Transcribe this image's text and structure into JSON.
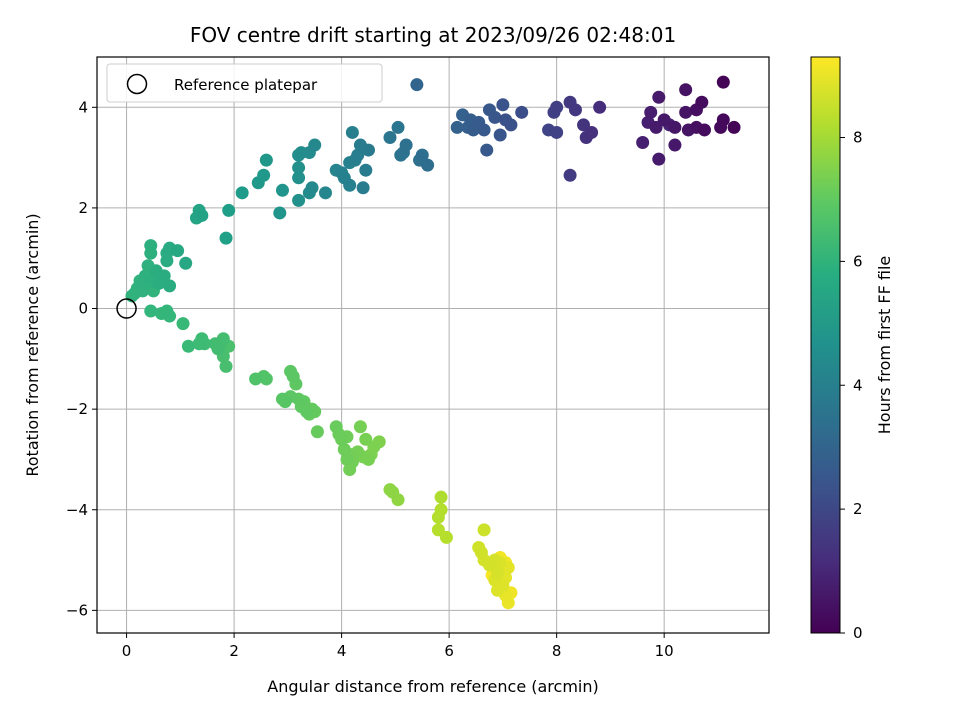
{
  "chart_data": {
    "type": "scatter",
    "title": "FOV centre drift starting at 2023/09/26 02:48:01",
    "xlabel": "Angular distance from reference (arcmin)",
    "ylabel": "Rotation from reference (arcmin)",
    "xlim": [
      -0.55,
      11.95
    ],
    "ylim": [
      -6.45,
      5.0
    ],
    "xticks": [
      0,
      2,
      4,
      6,
      8,
      10
    ],
    "yticks": [
      -6,
      -4,
      -2,
      0,
      2,
      4
    ],
    "grid": true,
    "legend": {
      "placement": "top-left",
      "entries": [
        "Reference platepar"
      ]
    },
    "reference_point": {
      "x": 0,
      "y": 0
    },
    "colorbar": {
      "label": "Hours from first FF file",
      "range": [
        0,
        9.3
      ],
      "ticks": [
        0,
        2,
        4,
        6,
        8
      ],
      "colormap": "viridis"
    },
    "points": [
      {
        "x": 11.1,
        "y": 4.5,
        "c": 0.1
      },
      {
        "x": 11.3,
        "y": 3.6,
        "c": 0.1
      },
      {
        "x": 11.1,
        "y": 3.75,
        "c": 0.2
      },
      {
        "x": 11.05,
        "y": 3.6,
        "c": 0.2
      },
      {
        "x": 10.75,
        "y": 3.55,
        "c": 0.3
      },
      {
        "x": 10.7,
        "y": 4.1,
        "c": 0.3
      },
      {
        "x": 10.6,
        "y": 3.95,
        "c": 0.35
      },
      {
        "x": 10.6,
        "y": 3.6,
        "c": 0.4
      },
      {
        "x": 10.4,
        "y": 4.35,
        "c": 0.45
      },
      {
        "x": 10.45,
        "y": 3.55,
        "c": 0.5
      },
      {
        "x": 10.4,
        "y": 3.9,
        "c": 0.5
      },
      {
        "x": 10.2,
        "y": 3.6,
        "c": 0.55
      },
      {
        "x": 10.2,
        "y": 3.25,
        "c": 0.6
      },
      {
        "x": 10.0,
        "y": 3.75,
        "c": 0.6
      },
      {
        "x": 9.9,
        "y": 4.2,
        "c": 0.65
      },
      {
        "x": 9.9,
        "y": 2.97,
        "c": 0.7
      },
      {
        "x": 9.85,
        "y": 3.6,
        "c": 0.7
      },
      {
        "x": 9.75,
        "y": 3.9,
        "c": 0.75
      },
      {
        "x": 9.7,
        "y": 3.7,
        "c": 0.8
      },
      {
        "x": 9.6,
        "y": 3.3,
        "c": 0.8
      },
      {
        "x": 10.1,
        "y": 3.65,
        "c": 0.85
      },
      {
        "x": 8.8,
        "y": 4.0,
        "c": 1.2
      },
      {
        "x": 8.65,
        "y": 3.5,
        "c": 1.3
      },
      {
        "x": 8.55,
        "y": 3.4,
        "c": 1.35
      },
      {
        "x": 8.5,
        "y": 3.65,
        "c": 1.4
      },
      {
        "x": 8.35,
        "y": 3.95,
        "c": 1.5
      },
      {
        "x": 8.25,
        "y": 4.1,
        "c": 1.55
      },
      {
        "x": 8.25,
        "y": 2.65,
        "c": 1.6
      },
      {
        "x": 8.0,
        "y": 4.0,
        "c": 1.7
      },
      {
        "x": 7.95,
        "y": 3.9,
        "c": 1.75
      },
      {
        "x": 8.0,
        "y": 3.5,
        "c": 1.8
      },
      {
        "x": 7.85,
        "y": 3.55,
        "c": 1.85
      },
      {
        "x": 7.35,
        "y": 3.9,
        "c": 2.2
      },
      {
        "x": 7.15,
        "y": 3.65,
        "c": 2.3
      },
      {
        "x": 7.05,
        "y": 3.75,
        "c": 2.35
      },
      {
        "x": 7.0,
        "y": 4.05,
        "c": 2.4
      },
      {
        "x": 6.95,
        "y": 3.45,
        "c": 2.45
      },
      {
        "x": 6.85,
        "y": 3.8,
        "c": 2.5
      },
      {
        "x": 6.75,
        "y": 3.95,
        "c": 2.55
      },
      {
        "x": 6.7,
        "y": 3.15,
        "c": 2.6
      },
      {
        "x": 6.65,
        "y": 3.55,
        "c": 2.6
      },
      {
        "x": 6.55,
        "y": 3.7,
        "c": 2.65
      },
      {
        "x": 6.45,
        "y": 3.55,
        "c": 2.7
      },
      {
        "x": 6.4,
        "y": 3.75,
        "c": 2.75
      },
      {
        "x": 6.35,
        "y": 3.6,
        "c": 2.8
      },
      {
        "x": 6.25,
        "y": 3.85,
        "c": 2.85
      },
      {
        "x": 6.15,
        "y": 3.6,
        "c": 2.9
      },
      {
        "x": 5.4,
        "y": 4.45,
        "c": 3.0
      },
      {
        "x": 5.6,
        "y": 2.85,
        "c": 3.3
      },
      {
        "x": 5.5,
        "y": 3.05,
        "c": 3.35
      },
      {
        "x": 5.45,
        "y": 2.95,
        "c": 3.4
      },
      {
        "x": 5.2,
        "y": 3.25,
        "c": 3.45
      },
      {
        "x": 5.15,
        "y": 3.1,
        "c": 3.5
      },
      {
        "x": 5.1,
        "y": 3.05,
        "c": 3.55
      },
      {
        "x": 5.05,
        "y": 3.6,
        "c": 3.6
      },
      {
        "x": 4.9,
        "y": 3.4,
        "c": 3.65
      },
      {
        "x": 4.5,
        "y": 3.15,
        "c": 3.8
      },
      {
        "x": 4.45,
        "y": 2.75,
        "c": 3.85
      },
      {
        "x": 4.4,
        "y": 2.4,
        "c": 3.9
      },
      {
        "x": 4.35,
        "y": 3.25,
        "c": 3.9
      },
      {
        "x": 4.3,
        "y": 3.05,
        "c": 3.95
      },
      {
        "x": 4.25,
        "y": 2.95,
        "c": 4.0
      },
      {
        "x": 4.2,
        "y": 3.5,
        "c": 4.0
      },
      {
        "x": 4.15,
        "y": 2.9,
        "c": 4.05
      },
      {
        "x": 4.15,
        "y": 2.45,
        "c": 4.05
      },
      {
        "x": 4.05,
        "y": 2.6,
        "c": 4.1
      },
      {
        "x": 4.0,
        "y": 2.7,
        "c": 4.15
      },
      {
        "x": 3.9,
        "y": 2.75,
        "c": 4.2
      },
      {
        "x": 3.7,
        "y": 2.3,
        "c": 4.3
      },
      {
        "x": 3.5,
        "y": 3.25,
        "c": 4.35
      },
      {
        "x": 3.45,
        "y": 2.4,
        "c": 4.4
      },
      {
        "x": 3.4,
        "y": 2.3,
        "c": 4.45
      },
      {
        "x": 3.4,
        "y": 3.1,
        "c": 4.5
      },
      {
        "x": 3.25,
        "y": 3.1,
        "c": 4.55
      },
      {
        "x": 3.2,
        "y": 3.05,
        "c": 4.6
      },
      {
        "x": 3.2,
        "y": 2.6,
        "c": 4.65
      },
      {
        "x": 3.2,
        "y": 2.8,
        "c": 4.65
      },
      {
        "x": 3.2,
        "y": 2.15,
        "c": 4.7
      },
      {
        "x": 2.9,
        "y": 2.35,
        "c": 4.8
      },
      {
        "x": 2.85,
        "y": 1.9,
        "c": 4.85
      },
      {
        "x": 2.6,
        "y": 2.95,
        "c": 4.9
      },
      {
        "x": 2.55,
        "y": 2.65,
        "c": 4.95
      },
      {
        "x": 2.45,
        "y": 2.5,
        "c": 5.0
      },
      {
        "x": 2.15,
        "y": 2.3,
        "c": 5.1
      },
      {
        "x": 1.9,
        "y": 1.95,
        "c": 5.2
      },
      {
        "x": 1.85,
        "y": 1.4,
        "c": 5.25
      },
      {
        "x": 1.4,
        "y": 1.85,
        "c": 5.35
      },
      {
        "x": 1.35,
        "y": 1.95,
        "c": 5.4
      },
      {
        "x": 1.3,
        "y": 1.8,
        "c": 5.45
      },
      {
        "x": 1.1,
        "y": 0.9,
        "c": 5.55
      },
      {
        "x": 0.95,
        "y": 1.15,
        "c": 5.6
      },
      {
        "x": 0.8,
        "y": 1.2,
        "c": 5.65
      },
      {
        "x": 0.75,
        "y": 1.1,
        "c": 5.7
      },
      {
        "x": 0.75,
        "y": 0.95,
        "c": 5.7
      },
      {
        "x": 0.7,
        "y": 0.65,
        "c": 5.75
      },
      {
        "x": 0.8,
        "y": 0.45,
        "c": 5.75
      },
      {
        "x": 0.6,
        "y": 0.5,
        "c": 5.8
      },
      {
        "x": 0.55,
        "y": 0.75,
        "c": 5.8
      },
      {
        "x": 0.5,
        "y": 0.55,
        "c": 5.85
      },
      {
        "x": 0.45,
        "y": 1.25,
        "c": 5.85
      },
      {
        "x": 0.45,
        "y": 1.1,
        "c": 5.85
      },
      {
        "x": 0.4,
        "y": 0.85,
        "c": 5.9
      },
      {
        "x": 0.35,
        "y": 0.65,
        "c": 5.9
      },
      {
        "x": 0.3,
        "y": 0.5,
        "c": 5.9
      },
      {
        "x": 0.3,
        "y": 0.35,
        "c": 5.95
      },
      {
        "x": 0.25,
        "y": 0.55,
        "c": 5.95
      },
      {
        "x": 0.2,
        "y": 0.4,
        "c": 6.0
      },
      {
        "x": 0.15,
        "y": 0.3,
        "c": 6.0
      },
      {
        "x": 0.1,
        "y": 0.25,
        "c": 6.0
      },
      {
        "x": 0.35,
        "y": 0.4,
        "c": 6.05
      },
      {
        "x": 0.5,
        "y": 0.35,
        "c": 6.05
      },
      {
        "x": 0.45,
        "y": -0.05,
        "c": 6.1
      },
      {
        "x": 0.65,
        "y": -0.1,
        "c": 6.15
      },
      {
        "x": 0.75,
        "y": -0.05,
        "c": 6.15
      },
      {
        "x": 0.8,
        "y": -0.15,
        "c": 6.2
      },
      {
        "x": 1.05,
        "y": -0.3,
        "c": 6.25
      },
      {
        "x": 1.15,
        "y": -0.75,
        "c": 6.3
      },
      {
        "x": 1.35,
        "y": -0.7,
        "c": 6.35
      },
      {
        "x": 1.4,
        "y": -0.6,
        "c": 6.35
      },
      {
        "x": 1.45,
        "y": -0.7,
        "c": 6.4
      },
      {
        "x": 1.65,
        "y": -0.7,
        "c": 6.45
      },
      {
        "x": 1.7,
        "y": -0.8,
        "c": 6.45
      },
      {
        "x": 1.75,
        "y": -0.7,
        "c": 6.5
      },
      {
        "x": 1.8,
        "y": -0.6,
        "c": 6.5
      },
      {
        "x": 1.8,
        "y": -0.95,
        "c": 6.55
      },
      {
        "x": 1.85,
        "y": -1.15,
        "c": 6.55
      },
      {
        "x": 1.9,
        "y": -0.75,
        "c": 6.6
      },
      {
        "x": 2.4,
        "y": -1.4,
        "c": 6.7
      },
      {
        "x": 2.55,
        "y": -1.35,
        "c": 6.75
      },
      {
        "x": 2.6,
        "y": -1.4,
        "c": 6.75
      },
      {
        "x": 2.9,
        "y": -1.8,
        "c": 6.85
      },
      {
        "x": 2.95,
        "y": -1.85,
        "c": 6.85
      },
      {
        "x": 3.05,
        "y": -1.25,
        "c": 6.9
      },
      {
        "x": 3.05,
        "y": -1.75,
        "c": 6.9
      },
      {
        "x": 3.1,
        "y": -1.35,
        "c": 6.9
      },
      {
        "x": 3.15,
        "y": -1.5,
        "c": 6.95
      },
      {
        "x": 3.2,
        "y": -1.8,
        "c": 6.95
      },
      {
        "x": 3.25,
        "y": -1.95,
        "c": 7.0
      },
      {
        "x": 3.3,
        "y": -1.85,
        "c": 7.0
      },
      {
        "x": 3.35,
        "y": -2.05,
        "c": 7.0
      },
      {
        "x": 3.4,
        "y": -2.1,
        "c": 7.05
      },
      {
        "x": 3.45,
        "y": -2.0,
        "c": 7.05
      },
      {
        "x": 3.5,
        "y": -2.05,
        "c": 7.05
      },
      {
        "x": 3.55,
        "y": -2.45,
        "c": 7.1
      },
      {
        "x": 3.9,
        "y": -2.35,
        "c": 7.15
      },
      {
        "x": 3.95,
        "y": -2.5,
        "c": 7.2
      },
      {
        "x": 4.0,
        "y": -2.6,
        "c": 7.2
      },
      {
        "x": 4.05,
        "y": -2.8,
        "c": 7.25
      },
      {
        "x": 4.1,
        "y": -3.0,
        "c": 7.25
      },
      {
        "x": 4.1,
        "y": -2.55,
        "c": 7.25
      },
      {
        "x": 4.15,
        "y": -3.2,
        "c": 7.3
      },
      {
        "x": 4.15,
        "y": -2.9,
        "c": 7.3
      },
      {
        "x": 4.2,
        "y": -3.05,
        "c": 7.3
      },
      {
        "x": 4.3,
        "y": -2.85,
        "c": 7.35
      },
      {
        "x": 4.35,
        "y": -2.35,
        "c": 7.35
      },
      {
        "x": 4.4,
        "y": -2.95,
        "c": 7.4
      },
      {
        "x": 4.45,
        "y": -2.6,
        "c": 7.4
      },
      {
        "x": 4.5,
        "y": -3.0,
        "c": 7.4
      },
      {
        "x": 4.55,
        "y": -2.9,
        "c": 7.45
      },
      {
        "x": 4.6,
        "y": -2.75,
        "c": 7.45
      },
      {
        "x": 4.7,
        "y": -2.65,
        "c": 7.5
      },
      {
        "x": 4.9,
        "y": -3.6,
        "c": 7.7
      },
      {
        "x": 4.95,
        "y": -3.65,
        "c": 7.7
      },
      {
        "x": 5.05,
        "y": -3.8,
        "c": 7.75
      },
      {
        "x": 5.85,
        "y": -3.75,
        "c": 8.2
      },
      {
        "x": 5.85,
        "y": -4.0,
        "c": 8.25
      },
      {
        "x": 5.8,
        "y": -4.15,
        "c": 8.25
      },
      {
        "x": 5.8,
        "y": -4.4,
        "c": 8.3
      },
      {
        "x": 5.95,
        "y": -4.55,
        "c": 8.3
      },
      {
        "x": 6.65,
        "y": -4.4,
        "c": 8.6
      },
      {
        "x": 6.55,
        "y": -4.75,
        "c": 8.65
      },
      {
        "x": 6.6,
        "y": -4.85,
        "c": 8.65
      },
      {
        "x": 6.65,
        "y": -5.0,
        "c": 8.7
      },
      {
        "x": 6.75,
        "y": -5.1,
        "c": 8.7
      },
      {
        "x": 6.85,
        "y": -5.0,
        "c": 8.75
      },
      {
        "x": 6.9,
        "y": -5.25,
        "c": 8.75
      },
      {
        "x": 6.95,
        "y": -5.05,
        "c": 8.8
      },
      {
        "x": 6.85,
        "y": -5.4,
        "c": 8.8
      },
      {
        "x": 6.9,
        "y": -5.6,
        "c": 8.85
      },
      {
        "x": 7.0,
        "y": -5.5,
        "c": 8.85
      },
      {
        "x": 7.0,
        "y": -5.2,
        "c": 8.9
      },
      {
        "x": 7.05,
        "y": -5.35,
        "c": 8.9
      },
      {
        "x": 7.1,
        "y": -5.15,
        "c": 8.95
      },
      {
        "x": 7.05,
        "y": -5.7,
        "c": 9.0
      },
      {
        "x": 7.1,
        "y": -5.85,
        "c": 9.05
      },
      {
        "x": 7.15,
        "y": -5.65,
        "c": 9.1
      },
      {
        "x": 7.05,
        "y": -5.05,
        "c": 9.1
      },
      {
        "x": 6.95,
        "y": -4.95,
        "c": 9.15
      },
      {
        "x": 6.8,
        "y": -5.3,
        "c": 9.2
      }
    ]
  }
}
